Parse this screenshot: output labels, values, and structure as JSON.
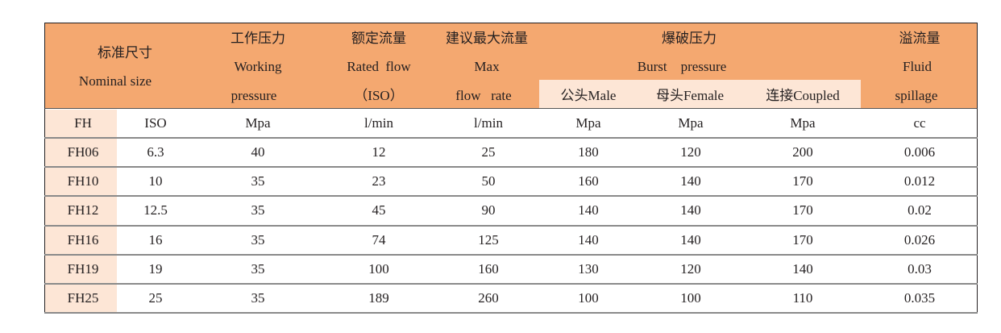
{
  "header": {
    "nominal_cn": "标准尺寸",
    "nominal_en": "Nominal size",
    "working_cn": "工作压力",
    "working_en1": "Working",
    "working_en2": "pressure",
    "rated_cn": "额定流量",
    "rated_en1": "Rated  flow",
    "rated_en2": "（ISO）",
    "max_cn": "建议最大流量",
    "max_en1": "Max",
    "max_en2": "flow   rate",
    "burst_cn": "爆破压力",
    "burst_en": "Burst    pressure",
    "male": "公头Male",
    "female": "母头Female",
    "coupled": "连接Coupled",
    "spill_cn": "溢流量",
    "spill_en1": "Fluid",
    "spill_en2": "spillage"
  },
  "units": [
    "FH",
    "ISO",
    "Mpa",
    "l/min",
    "l/min",
    "Mpa",
    "Mpa",
    "Mpa",
    "cc"
  ],
  "rows": [
    [
      "FH06",
      "6.3",
      "40",
      "12",
      "25",
      "180",
      "120",
      "200",
      "0.006"
    ],
    [
      "FH10",
      "10",
      "35",
      "23",
      "50",
      "160",
      "140",
      "170",
      "0.012"
    ],
    [
      "FH12",
      "12.5",
      "35",
      "45",
      "90",
      "140",
      "140",
      "170",
      "0.02"
    ],
    [
      "FH16",
      "16",
      "35",
      "74",
      "125",
      "140",
      "140",
      "170",
      "0.026"
    ],
    [
      "FH19",
      "19",
      "35",
      "100",
      "160",
      "130",
      "120",
      "140",
      "0.03"
    ],
    [
      "FH25",
      "25",
      "35",
      "189",
      "260",
      "100",
      "100",
      "110",
      "0.035"
    ]
  ],
  "colors": {
    "header": "#f4a870",
    "light": "#fde6d6"
  }
}
